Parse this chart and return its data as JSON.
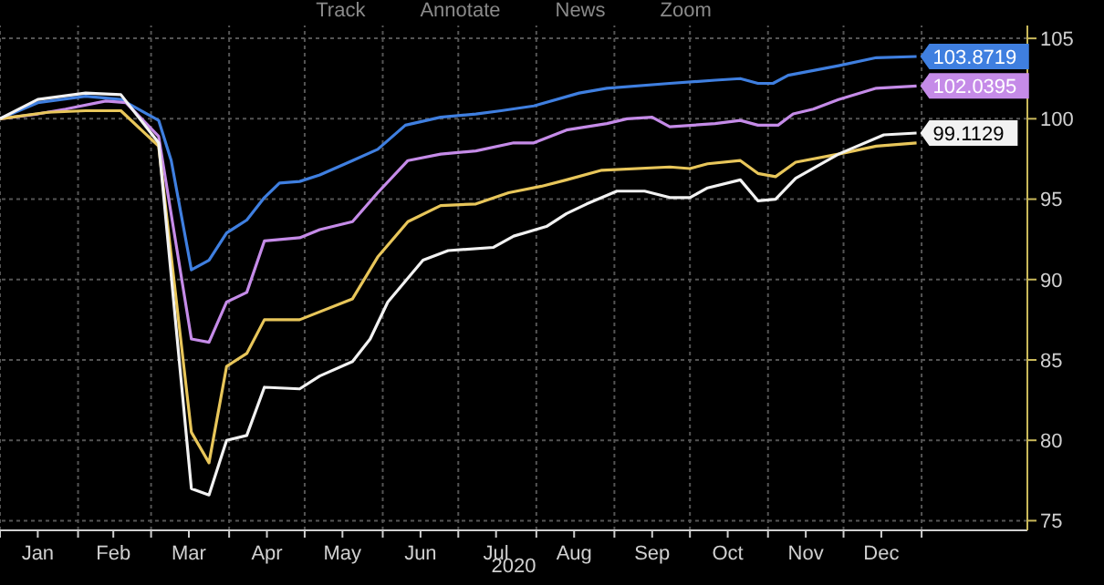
{
  "chart_data": {
    "type": "line",
    "xlabel": "2020",
    "annotations": [
      "Track",
      "Annotate",
      "News",
      "Zoom"
    ],
    "grid": true,
    "marker": "none",
    "line_style": "solid",
    "xlim": [
      "2020-01-01",
      "2021-02-12"
    ],
    "xticks": [
      {
        "value": "2020-01-01",
        "label": null
      },
      {
        "value": "2020-01-16",
        "label": "Jan"
      },
      {
        "value": "2020-02-01",
        "label": null
      },
      {
        "value": "2020-02-15",
        "label": "Feb"
      },
      {
        "value": "2020-03-01",
        "label": null
      },
      {
        "value": "2020-03-16",
        "label": "Mar"
      },
      {
        "value": "2020-04-01",
        "label": null
      },
      {
        "value": "2020-04-16",
        "label": "Apr"
      },
      {
        "value": "2020-05-01",
        "label": null
      },
      {
        "value": "2020-05-16",
        "label": "May"
      },
      {
        "value": "2020-06-01",
        "label": null
      },
      {
        "value": "2020-06-16",
        "label": "Jun"
      },
      {
        "value": "2020-07-01",
        "label": null
      },
      {
        "value": "2020-07-16",
        "label": "Jul"
      },
      {
        "value": "2020-08-01",
        "label": null
      },
      {
        "value": "2020-08-16",
        "label": "Aug"
      },
      {
        "value": "2020-09-01",
        "label": null
      },
      {
        "value": "2020-09-16",
        "label": "Sep"
      },
      {
        "value": "2020-10-01",
        "label": null
      },
      {
        "value": "2020-10-16",
        "label": "Oct"
      },
      {
        "value": "2020-11-01",
        "label": null
      },
      {
        "value": "2020-11-16",
        "label": "Nov"
      },
      {
        "value": "2020-12-01",
        "label": null
      },
      {
        "value": "2020-12-16",
        "label": "Dec"
      },
      {
        "value": "2021-01-01",
        "label": null
      }
    ],
    "ylim": [
      74.4,
      105.8
    ],
    "yticks": [
      75,
      80,
      85,
      90,
      95,
      100,
      105
    ],
    "series": [
      {
        "color": "#3f7fe0",
        "x": [
          "2020-01-01",
          "2020-01-16",
          "2020-02-04",
          "2020-02-18",
          "2020-03-04",
          "2020-03-09",
          "2020-03-17",
          "2020-03-24",
          "2020-03-31",
          "2020-04-08",
          "2020-04-15",
          "2020-04-21",
          "2020-04-29",
          "2020-05-07",
          "2020-05-20",
          "2020-05-30",
          "2020-06-10",
          "2020-06-24",
          "2020-07-08",
          "2020-07-18",
          "2020-07-31",
          "2020-08-18",
          "2020-08-29",
          "2020-09-23",
          "2020-10-11",
          "2020-10-21",
          "2020-10-28",
          "2020-11-03",
          "2020-11-09",
          "2020-11-29",
          "2020-12-14",
          "2020-12-30"
        ],
        "values": [
          100,
          101.0,
          101.4,
          101.2,
          99.9,
          97.4,
          90.6,
          91.2,
          92.9,
          93.7,
          95.1,
          96.0,
          96.1,
          96.5,
          97.4,
          98.1,
          99.6,
          100.1,
          100.3,
          100.5,
          100.8,
          101.6,
          101.9,
          102.2,
          102.4,
          102.5,
          102.2,
          102.2,
          102.7,
          103.3,
          103.8,
          103.8719
        ],
        "value_labels": [
          null,
          null,
          null,
          null,
          null,
          null,
          null,
          null,
          null,
          null,
          null,
          null,
          null,
          null,
          null,
          null,
          null,
          null,
          null,
          null,
          null,
          null,
          null,
          null,
          null,
          null,
          null,
          null,
          null,
          null,
          null,
          "103.8719"
        ]
      },
      {
        "color": "#c58be8",
        "x": [
          "2020-01-01",
          "2020-01-16",
          "2020-01-27",
          "2020-02-12",
          "2020-02-20",
          "2020-03-04",
          "2020-03-17",
          "2020-03-24",
          "2020-03-31",
          "2020-04-08",
          "2020-04-15",
          "2020-04-29",
          "2020-05-07",
          "2020-05-20",
          "2020-05-30",
          "2020-06-11",
          "2020-06-24",
          "2020-07-08",
          "2020-07-23",
          "2020-07-31",
          "2020-08-13",
          "2020-08-29",
          "2020-09-06",
          "2020-09-16",
          "2020-09-23",
          "2020-10-11",
          "2020-10-21",
          "2020-10-28",
          "2020-11-05",
          "2020-11-11",
          "2020-11-19",
          "2020-11-29",
          "2020-12-14",
          "2020-12-30"
        ],
        "values": [
          100,
          100.3,
          100.6,
          101.1,
          101.0,
          98.9,
          86.3,
          86.1,
          88.6,
          89.2,
          92.4,
          92.6,
          93.1,
          93.6,
          95.4,
          97.4,
          97.8,
          98.0,
          98.5,
          98.5,
          99.3,
          99.7,
          100.0,
          100.1,
          99.5,
          99.7,
          99.9,
          99.6,
          99.6,
          100.3,
          100.6,
          101.2,
          101.9,
          102.0395
        ],
        "value_labels": [
          null,
          null,
          null,
          null,
          null,
          null,
          null,
          null,
          null,
          null,
          null,
          null,
          null,
          null,
          null,
          null,
          null,
          null,
          null,
          null,
          null,
          null,
          null,
          null,
          null,
          null,
          null,
          null,
          null,
          null,
          null,
          null,
          null,
          "102.0395"
        ]
      },
      {
        "color": "#e8c65a",
        "x": [
          "2020-01-01",
          "2020-01-20",
          "2020-02-04",
          "2020-02-18",
          "2020-03-04",
          "2020-03-17",
          "2020-03-24",
          "2020-03-31",
          "2020-04-08",
          "2020-04-15",
          "2020-04-29",
          "2020-05-20",
          "2020-05-30",
          "2020-06-11",
          "2020-06-24",
          "2020-07-08",
          "2020-07-21",
          "2020-08-03",
          "2020-08-13",
          "2020-08-27",
          "2020-09-23",
          "2020-10-01",
          "2020-10-08",
          "2020-10-21",
          "2020-10-28",
          "2020-11-04",
          "2020-11-12",
          "2020-11-29",
          "2020-12-14",
          "2020-12-30"
        ],
        "values": [
          100,
          100.4,
          100.5,
          100.5,
          98.3,
          80.5,
          78.6,
          84.6,
          85.4,
          87.5,
          87.5,
          88.8,
          91.4,
          93.6,
          94.6,
          94.7,
          95.4,
          95.8,
          96.2,
          96.8,
          97.0,
          96.9,
          97.2,
          97.4,
          96.6,
          96.4,
          97.3,
          97.8,
          98.3,
          98.5
        ]
      },
      {
        "color": "#f2f2f2",
        "x": [
          "2020-01-01",
          "2020-01-16",
          "2020-02-04",
          "2020-02-18",
          "2020-03-04",
          "2020-03-17",
          "2020-03-24",
          "2020-03-31",
          "2020-04-08",
          "2020-04-15",
          "2020-04-29",
          "2020-05-07",
          "2020-05-20",
          "2020-05-27",
          "2020-06-03",
          "2020-06-17",
          "2020-06-27",
          "2020-07-15",
          "2020-07-23",
          "2020-08-05",
          "2020-08-13",
          "2020-08-21",
          "2020-09-02",
          "2020-09-13",
          "2020-09-23",
          "2020-10-01",
          "2020-10-08",
          "2020-10-21",
          "2020-10-28",
          "2020-11-04",
          "2020-11-12",
          "2020-11-29",
          "2020-12-17",
          "2020-12-30"
        ],
        "values": [
          100,
          101.2,
          101.6,
          101.5,
          98.5,
          77.0,
          76.6,
          80.0,
          80.3,
          83.3,
          83.2,
          84.0,
          84.9,
          86.3,
          88.6,
          91.2,
          91.8,
          92.0,
          92.7,
          93.3,
          94.1,
          94.7,
          95.5,
          95.5,
          95.1,
          95.1,
          95.7,
          96.2,
          94.9,
          95.0,
          96.3,
          97.8,
          99.0,
          99.1129
        ],
        "value_labels": [
          null,
          null,
          null,
          null,
          null,
          null,
          null,
          null,
          null,
          null,
          null,
          null,
          null,
          null,
          null,
          null,
          null,
          null,
          null,
          null,
          null,
          null,
          null,
          null,
          null,
          null,
          null,
          null,
          null,
          null,
          null,
          null,
          null,
          "99.1129"
        ]
      }
    ]
  }
}
